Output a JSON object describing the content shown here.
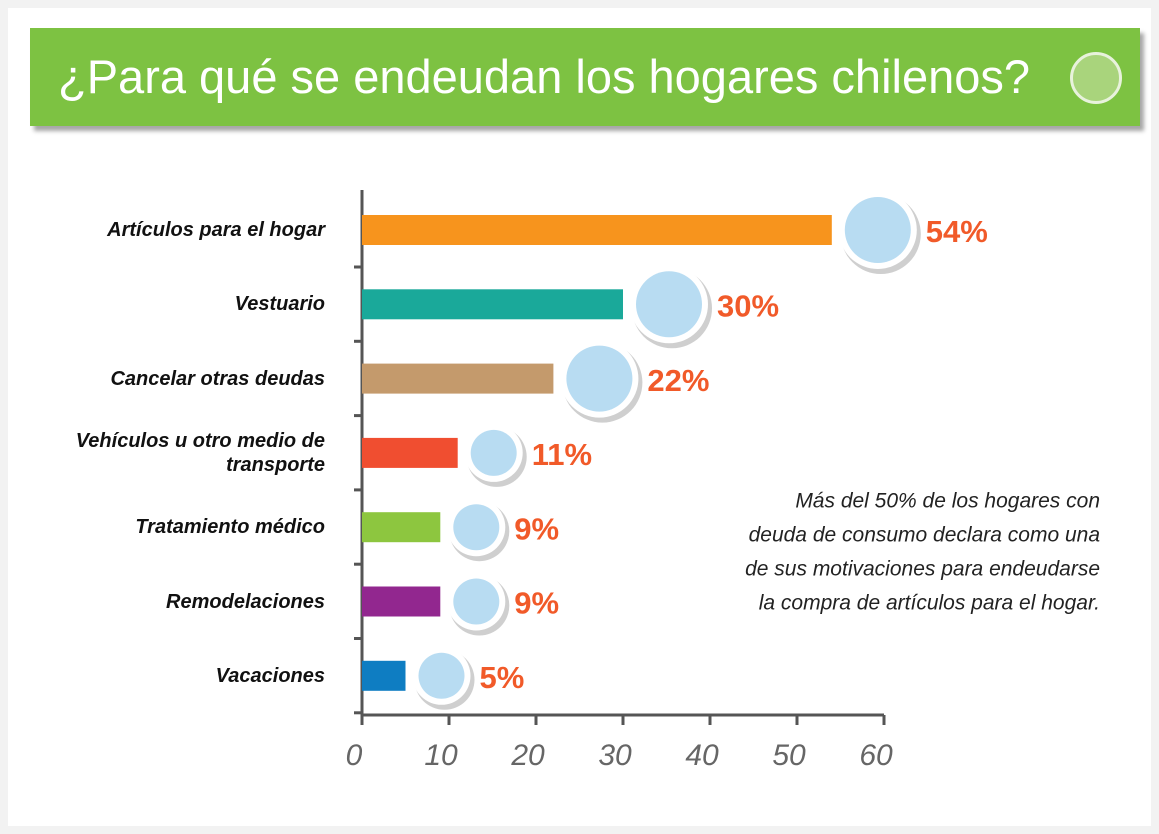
{
  "chart_data": {
    "type": "bar",
    "orientation": "horizontal",
    "title": "¿Para qué se endeudan los hogares chilenos?",
    "categories": [
      "Artículos para el hogar",
      "Vestuario",
      "Cancelar otras deudas",
      "Vehículos u otro medio de transporte",
      "Tratamiento médico",
      "Remodelaciones",
      "Vacaciones"
    ],
    "values": [
      54,
      30,
      22,
      11,
      9,
      9,
      5
    ],
    "value_labels": [
      "54%",
      "30%",
      "22%",
      "11%",
      "9%",
      "9%",
      "5%"
    ],
    "colors": [
      "#f7941d",
      "#1aa99a",
      "#c49a6c",
      "#f04e30",
      "#8dc63f",
      "#92278f",
      "#0e7dc2"
    ],
    "xlim": [
      0,
      60
    ],
    "xticks": [
      0,
      10,
      20,
      30,
      40,
      50,
      60
    ],
    "annotation": [
      "Más del 50% de los hogares con",
      "deuda de consumo declara como una",
      "de sus motivaciones para endeudarse",
      "la compra de artículos para el hogar."
    ]
  }
}
